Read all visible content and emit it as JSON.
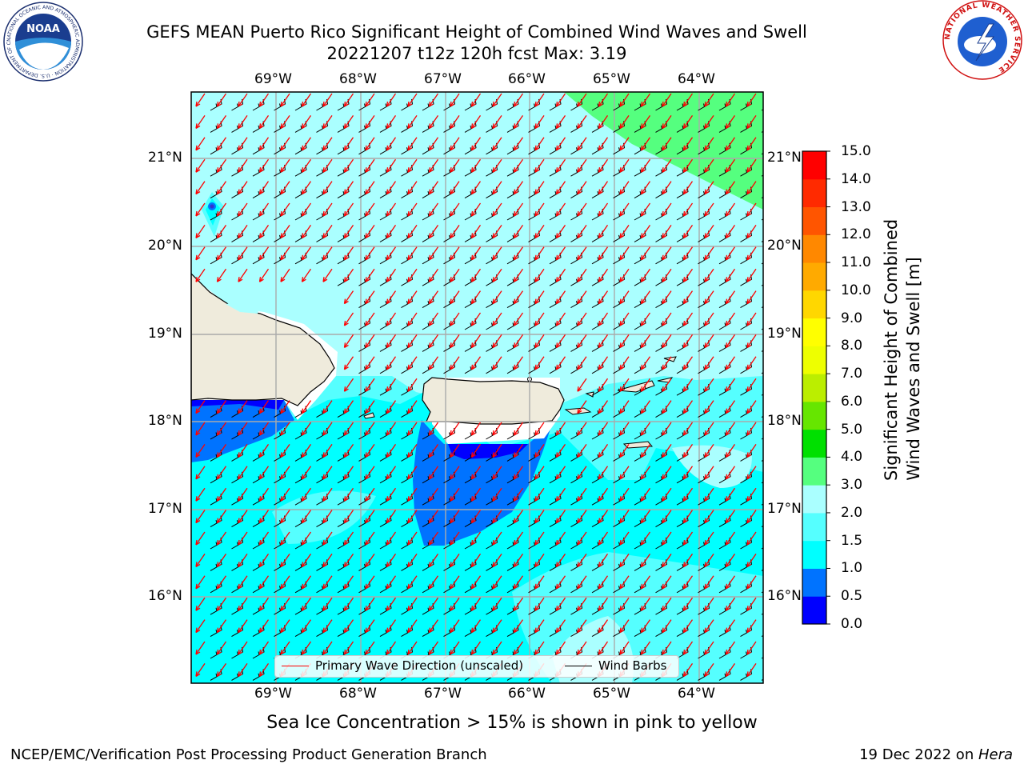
{
  "title": {
    "line1": "GEFS MEAN Puerto Rico Significant Height of Combined Wind Waves and Swell",
    "line2": "20221207 t12z 120h fcst   Max: 3.19"
  },
  "map": {
    "lon_labels": [
      "69°W",
      "68°W",
      "67°W",
      "66°W",
      "65°W",
      "64°W"
    ],
    "lat_labels": [
      "21°N",
      "20°N",
      "19°N",
      "18°N",
      "17°N",
      "16°N"
    ]
  },
  "legend": {
    "wave_label": "Primary Wave Direction (unscaled)",
    "wave_color": "#ff0000",
    "barb_label": "Wind Barbs",
    "barb_color": "#000000"
  },
  "colorbar": {
    "title_line1": "Significant Height of Combined",
    "title_line2": "Wind Waves and Swell [m]",
    "ticks": [
      "0.0",
      "0.5",
      "1.0",
      "1.5",
      "2.0",
      "3.0",
      "4.0",
      "5.0",
      "6.0",
      "7.0",
      "8.0",
      "9.0",
      "10.0",
      "11.0",
      "12.0",
      "13.0",
      "14.0",
      "15.0"
    ],
    "colors": [
      "#0000ff",
      "#0073ff",
      "#00ffff",
      "#55ffff",
      "#aaffff",
      "#55ff7f",
      "#00e000",
      "#66e600",
      "#bbee00",
      "#eeff00",
      "#ffff00",
      "#ffd700",
      "#ffaa00",
      "#ff8800",
      "#ff5500",
      "#ff2a00",
      "#ff0000"
    ]
  },
  "note": "Sea Ice Concentration > 15% is shown in pink to yellow",
  "footer": {
    "left": "NCEP/EMC/Verification Post Processing Product Generation Branch",
    "right_prefix": "19 Dec 2022 on ",
    "right_host": "Hera"
  },
  "logos": {
    "noaa_text": "NOAA",
    "noaa_ring": "NATIONAL OCEANIC AND ATMOSPHERIC ADMINISTRATION · U.S. DEPARTMENT OF COMMERCE",
    "nws_ring": "NATIONAL WEATHER SERVICE"
  }
}
